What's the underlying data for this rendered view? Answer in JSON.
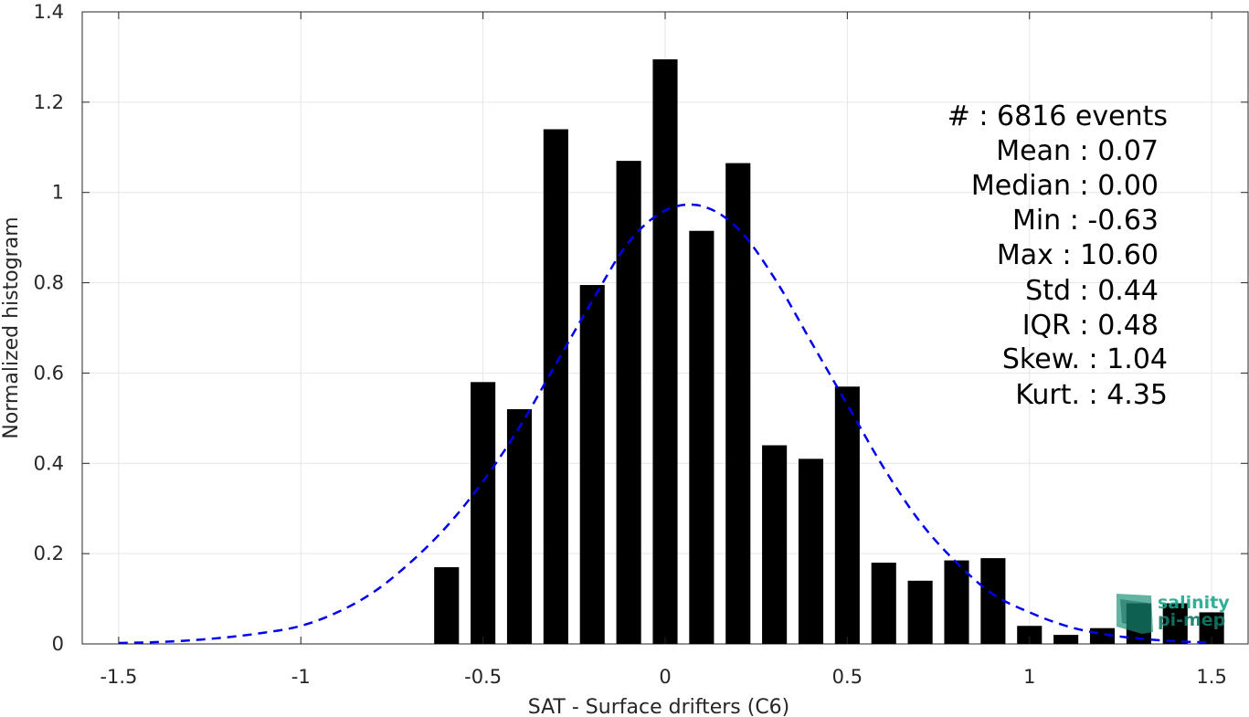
{
  "chart_data": {
    "type": "bar",
    "title": "",
    "xlabel": "SAT - Surface drifters (C6)",
    "ylabel": "Normalized histogram",
    "xlim": [
      -1.6,
      1.6
    ],
    "ylim": [
      0,
      1.4
    ],
    "xticks": [
      -1.5,
      -1,
      -0.5,
      0,
      0.5,
      1,
      1.5
    ],
    "xtick_labels": [
      "-1.5",
      "-1",
      "-0.5",
      "0",
      "0.5",
      "1",
      "1.5"
    ],
    "yticks": [
      0,
      0.2,
      0.4,
      0.6,
      0.8,
      1,
      1.2,
      1.4
    ],
    "ytick_labels": [
      "0",
      "0.2",
      "0.4",
      "0.6",
      "0.8",
      "1",
      "1.2",
      "1.4"
    ],
    "grid": true,
    "bar_color": "#000000",
    "bars": {
      "x": [
        -0.6,
        -0.5,
        -0.4,
        -0.3,
        -0.2,
        -0.1,
        0.0,
        0.1,
        0.2,
        0.3,
        0.4,
        0.5,
        0.6,
        0.7,
        0.8,
        0.9,
        1.0,
        1.1,
        1.2,
        1.3,
        1.4,
        1.5
      ],
      "values": [
        0.17,
        0.58,
        0.52,
        1.14,
        0.795,
        1.07,
        1.295,
        0.915,
        1.065,
        0.44,
        0.41,
        0.57,
        0.18,
        0.14,
        0.185,
        0.19,
        0.04,
        0.02,
        0.035,
        0.09,
        0.09,
        0.07
      ],
      "bin_width": 0.1
    },
    "gaussian_fit": {
      "style": "dashed",
      "color": "#0000ee",
      "x": [
        -1.5,
        -1.4,
        -1.3,
        -1.2,
        -1.1,
        -1.0,
        -0.9,
        -0.8,
        -0.7,
        -0.6,
        -0.5,
        -0.4,
        -0.3,
        -0.2,
        -0.1,
        0.0,
        0.1,
        0.2,
        0.3,
        0.4,
        0.5,
        0.6,
        0.7,
        0.8,
        0.9,
        1.0,
        1.1,
        1.2,
        1.3,
        1.4,
        1.5
      ],
      "y": [
        0.002,
        0.004,
        0.008,
        0.015,
        0.025,
        0.04,
        0.07,
        0.115,
        0.18,
        0.26,
        0.36,
        0.48,
        0.62,
        0.76,
        0.89,
        0.96,
        0.97,
        0.92,
        0.81,
        0.67,
        0.53,
        0.39,
        0.27,
        0.18,
        0.11,
        0.07,
        0.04,
        0.022,
        0.012,
        0.006,
        0.003
      ]
    },
    "annotation": {
      "count_label": "#  : 6816 events",
      "lines": [
        "Mean : 0.07",
        "Median : 0.00",
        "Min : -0.63",
        "Max : 10.60",
        "Std : 0.44",
        "IQR : 0.48",
        "Skew. : 1.04",
        "Kurt. : 4.35"
      ]
    }
  },
  "logo": {
    "line1": "salinity",
    "line2": "pi-mep",
    "color": "#1aa98c"
  }
}
